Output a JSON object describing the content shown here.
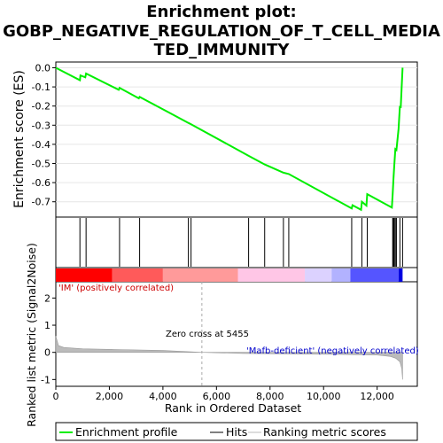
{
  "title_line1": "Enrichment plot:",
  "title_line2": "GOBP_NEGATIVE_REGULATION_OF_T_CELL_MEDIA",
  "title_line3": "TED_IMMUNITY",
  "colors": {
    "profile": "#00ee00",
    "hits": "#000000",
    "metric_fill": "#bbbbbb",
    "pos_label": "#cc0000",
    "neg_label": "#0000cc",
    "zero_line": "#aaaaaa"
  },
  "chart_data": {
    "type": "line",
    "x_range": [
      0,
      13500
    ],
    "x_ticks": [
      0,
      2000,
      4000,
      6000,
      8000,
      10000,
      12000
    ],
    "x_tick_labels": [
      "0",
      "2,000",
      "4,000",
      "6,000",
      "8,000",
      "10,000",
      "12,000"
    ],
    "xlabel": "Rank in Ordered Dataset",
    "es_panel": {
      "ylabel": "Enrichment score (ES)",
      "ylim": [
        -0.78,
        0.03
      ],
      "y_ticks": [
        0.0,
        -0.1,
        -0.2,
        -0.3,
        -0.4,
        -0.5,
        -0.6,
        -0.7
      ],
      "y_tick_labels": [
        "0.0",
        "-0.1",
        "-0.2",
        "-0.3",
        "-0.4",
        "-0.5",
        "-0.6",
        "-0.7"
      ],
      "series_name": "Enrichment profile",
      "x": [
        0,
        900,
        920,
        1100,
        1130,
        2350,
        2380,
        3100,
        3130,
        4950,
        5050,
        7200,
        7800,
        8500,
        8700,
        11050,
        11080,
        11400,
        11430,
        11600,
        11630,
        12550,
        12580,
        12610,
        12640,
        12680,
        12720,
        12800,
        12850,
        12880,
        12950
      ],
      "y": [
        0.0,
        -0.065,
        -0.04,
        -0.05,
        -0.03,
        -0.115,
        -0.105,
        -0.16,
        -0.152,
        -0.288,
        -0.295,
        -0.46,
        -0.505,
        -0.548,
        -0.555,
        -0.735,
        -0.718,
        -0.742,
        -0.7,
        -0.72,
        -0.66,
        -0.73,
        -0.66,
        -0.58,
        -0.51,
        -0.425,
        -0.43,
        -0.32,
        -0.2,
        -0.21,
        0.0
      ]
    },
    "hits": [
      900,
      1130,
      2380,
      3130,
      4950,
      5050,
      7200,
      7800,
      8500,
      8700,
      11050,
      11430,
      11630,
      12580,
      12610,
      12640,
      12680,
      12720,
      12850,
      12950
    ],
    "heatmap_colors": [
      "#ff0000",
      "#ff5a5a",
      "#ff9a9a",
      "#ffc6e6",
      "#dcd2ff",
      "#b2b2ff",
      "#5555ff",
      "#0000e0"
    ],
    "heatmap_bounds": [
      0,
      2100,
      4000,
      6800,
      9300,
      10300,
      11000,
      12800,
      12950
    ],
    "labels": {
      "pos": "'IM' (positively correlated)",
      "neg": "'Mafb-deficient' (negatively correlated)",
      "zero_cross": "Zero cross at 5455"
    },
    "zero_cross": 5455,
    "metric_panel": {
      "ylabel": "Ranked list metric (Signal2Noise)",
      "ylim": [
        -1.25,
        2.6
      ],
      "y_ticks": [
        2,
        1,
        0,
        -1
      ],
      "y_tick_labels": [
        "2",
        "1",
        "0",
        "-1"
      ],
      "x": [
        0,
        100,
        300,
        1000,
        2500,
        4000,
        5455,
        7000,
        9000,
        11000,
        12000,
        12500,
        12700,
        12850,
        12920,
        12950
      ],
      "y": [
        0.6,
        0.25,
        0.18,
        0.13,
        0.1,
        0.07,
        0.0,
        -0.04,
        -0.06,
        -0.08,
        -0.1,
        -0.15,
        -0.22,
        -0.35,
        -0.6,
        -1.0
      ]
    },
    "legend": [
      {
        "name": "Enrichment profile"
      },
      {
        "name": "Hits"
      },
      {
        "name": "Ranking metric scores"
      }
    ]
  }
}
